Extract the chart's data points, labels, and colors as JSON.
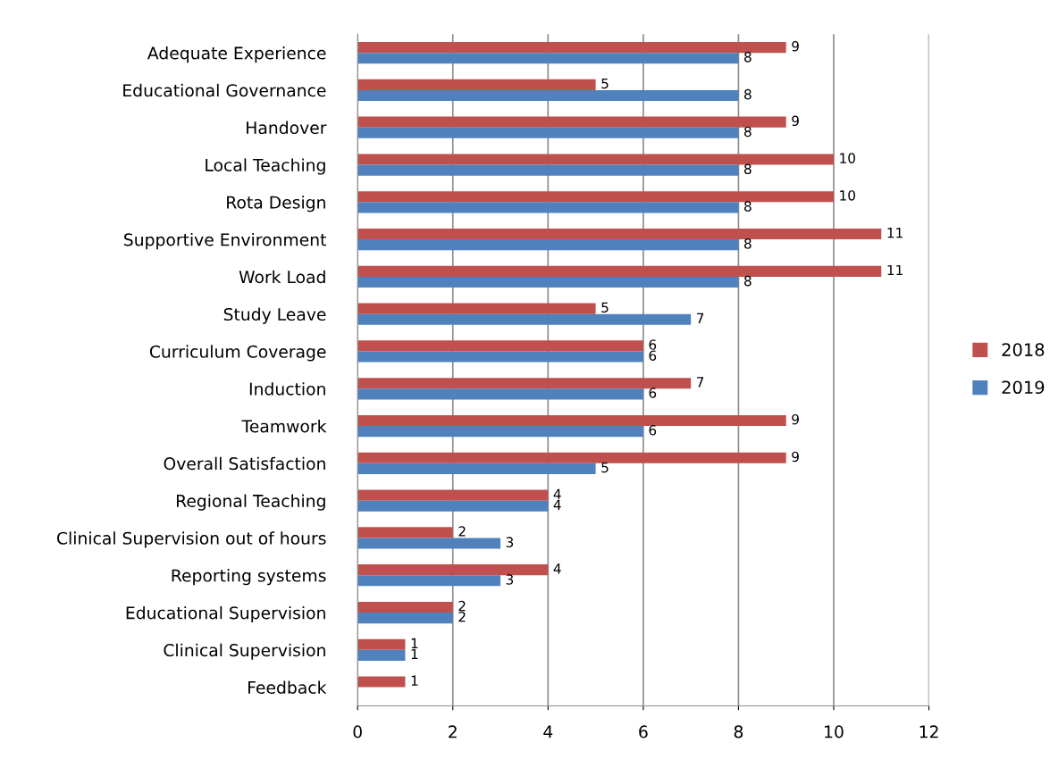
{
  "chart_data": {
    "type": "bar",
    "orientation": "horizontal",
    "categories": [
      "Adequate Experience",
      "Educational Governance",
      "Handover",
      "Local Teaching",
      "Rota Design",
      "Supportive Environment",
      "Work Load",
      "Study Leave",
      "Curriculum Coverage",
      "Induction",
      "Teamwork",
      "Overall Satisfaction",
      "Regional Teaching",
      "Clinical Supervision out of hours",
      "Reporting systems",
      "Educational Supervision",
      "Clinical Supervision",
      "Feedback"
    ],
    "series": [
      {
        "name": "2018",
        "color": "#c0504d",
        "values": [
          9,
          5,
          9,
          10,
          10,
          11,
          11,
          5,
          6,
          7,
          9,
          9,
          4,
          2,
          4,
          2,
          1,
          1
        ]
      },
      {
        "name": "2019",
        "color": "#4f81bd",
        "values": [
          8,
          8,
          8,
          8,
          8,
          8,
          8,
          7,
          6,
          6,
          6,
          5,
          4,
          3,
          3,
          2,
          1,
          null
        ]
      }
    ],
    "xlim": [
      0,
      12
    ],
    "xticks": [
      0,
      2,
      4,
      6,
      8,
      10,
      12
    ],
    "grid": "x",
    "legend": "right",
    "data_labels": true
  }
}
